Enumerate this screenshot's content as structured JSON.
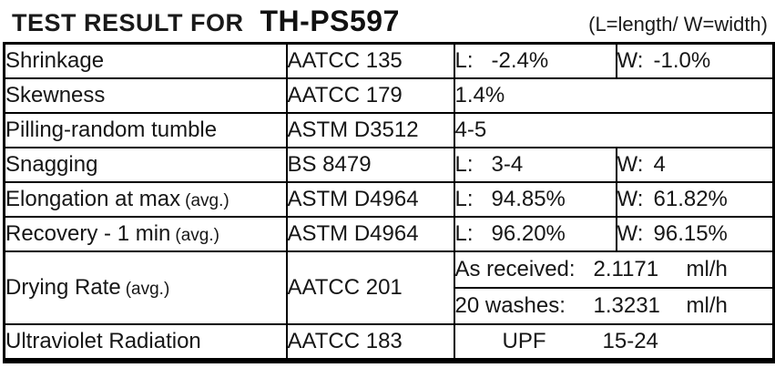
{
  "header": {
    "title_prefix": "TEST RESULT FOR",
    "title_code": "TH-PS597",
    "legend": "(L=length/ W=width)"
  },
  "table": {
    "rows": [
      {
        "name": "Shrinkage",
        "standard": "AATCC 135",
        "l_label": "L:",
        "l_value": "-2.4%",
        "w_label": "W:",
        "w_value": "-1.0%"
      },
      {
        "name": "Skewness",
        "standard": "AATCC 179",
        "value": "1.4%"
      },
      {
        "name": "Pilling-random tumble",
        "standard": "ASTM D3512",
        "value": "4-5"
      },
      {
        "name": "Snagging",
        "standard": "BS 8479",
        "l_label": "L:",
        "l_value": "3-4",
        "w_label": "W:",
        "w_value": "4"
      },
      {
        "name": "Elongation at max",
        "name_suffix": "(avg.)",
        "standard": "ASTM D4964",
        "l_label": "L:",
        "l_value": "94.85%",
        "w_label": "W:",
        "w_value": "61.82%"
      },
      {
        "name": "Recovery - 1 min",
        "name_suffix": "(avg.)",
        "standard": "ASTM D4964",
        "l_label": "L:",
        "l_value": "96.20%",
        "w_label": "W:",
        "w_value": "96.15%"
      },
      {
        "name": "Drying Rate",
        "name_suffix": "(avg.)",
        "standard": "AATCC 201",
        "sub_rows": [
          {
            "label": "As received:",
            "value": "2.1171",
            "unit": "ml/h"
          },
          {
            "label": "20 washes:",
            "value": "1.3231",
            "unit": "ml/h"
          }
        ]
      },
      {
        "name": "Ultraviolet Radiation",
        "standard": "AATCC 183",
        "value_label": "UPF",
        "value": "15-24"
      }
    ]
  },
  "colors": {
    "text": "#1a1a1a",
    "border": "#000000",
    "background": "#ffffff"
  }
}
